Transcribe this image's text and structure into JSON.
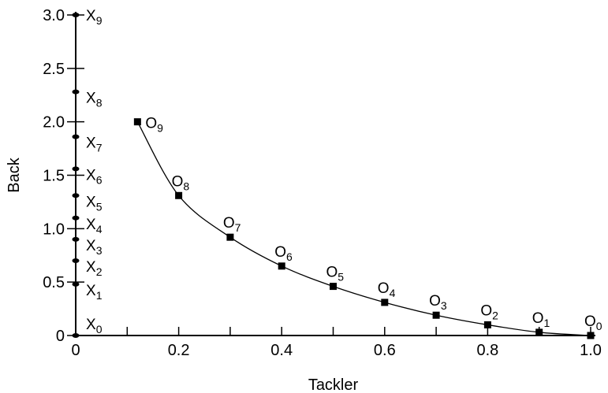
{
  "chart_data": {
    "type": "line",
    "xlabel": "Tackler",
    "ylabel": "Back",
    "xlim": [
      0,
      1.0
    ],
    "ylim": [
      0,
      3.0
    ],
    "grid": false,
    "x_ticks": [
      {
        "value": 0,
        "label": "0"
      },
      {
        "value": 0.2,
        "label": "0.2"
      },
      {
        "value": 0.4,
        "label": "0.4"
      },
      {
        "value": 0.6,
        "label": "0.6"
      },
      {
        "value": 0.8,
        "label": "0.8"
      },
      {
        "value": 1.0,
        "label": "1.0"
      }
    ],
    "x_minor_ticks": [
      0.1,
      0.3,
      0.5,
      0.7,
      0.9
    ],
    "y_ticks": [
      {
        "value": 0,
        "label": "0"
      },
      {
        "value": 0.5,
        "label": "0.5"
      },
      {
        "value": 1.0,
        "label": "1.0"
      },
      {
        "value": 1.5,
        "label": "1.5"
      },
      {
        "value": 2.0,
        "label": "2.0"
      },
      {
        "value": 2.5,
        "label": "2.5"
      },
      {
        "value": 3.0,
        "label": "3.0"
      }
    ],
    "series": [
      {
        "marker": "square",
        "connected": true,
        "points": [
          {
            "x": 0.12,
            "y": 2.0,
            "base": "O",
            "sub": "9"
          },
          {
            "x": 0.2,
            "y": 1.31,
            "base": "O",
            "sub": "8"
          },
          {
            "x": 0.3,
            "y": 0.92,
            "base": "O",
            "sub": "7"
          },
          {
            "x": 0.4,
            "y": 0.65,
            "base": "O",
            "sub": "6"
          },
          {
            "x": 0.5,
            "y": 0.46,
            "base": "O",
            "sub": "5"
          },
          {
            "x": 0.6,
            "y": 0.31,
            "base": "O",
            "sub": "4"
          },
          {
            "x": 0.7,
            "y": 0.19,
            "base": "O",
            "sub": "3"
          },
          {
            "x": 0.8,
            "y": 0.1,
            "base": "O",
            "sub": "2"
          },
          {
            "x": 0.9,
            "y": 0.03,
            "base": "O",
            "sub": "1"
          },
          {
            "x": 1.0,
            "y": 0.0,
            "base": "O",
            "sub": "0"
          }
        ]
      },
      {
        "marker": "dot",
        "connected": false,
        "points": [
          {
            "x": 0,
            "y": 0.0,
            "base": "X",
            "sub": "0"
          },
          {
            "x": 0,
            "y": 0.48,
            "base": "X",
            "sub": "1"
          },
          {
            "x": 0,
            "y": 0.7,
            "base": "X",
            "sub": "2"
          },
          {
            "x": 0,
            "y": 0.9,
            "base": "X",
            "sub": "3"
          },
          {
            "x": 0,
            "y": 1.1,
            "base": "X",
            "sub": "4"
          },
          {
            "x": 0,
            "y": 1.31,
            "base": "X",
            "sub": "5"
          },
          {
            "x": 0,
            "y": 1.56,
            "base": "X",
            "sub": "6"
          },
          {
            "x": 0,
            "y": 1.86,
            "base": "X",
            "sub": "7"
          },
          {
            "x": 0,
            "y": 2.28,
            "base": "X",
            "sub": "8"
          },
          {
            "x": 0,
            "y": 3.0,
            "base": "X",
            "sub": "9"
          }
        ]
      }
    ]
  }
}
